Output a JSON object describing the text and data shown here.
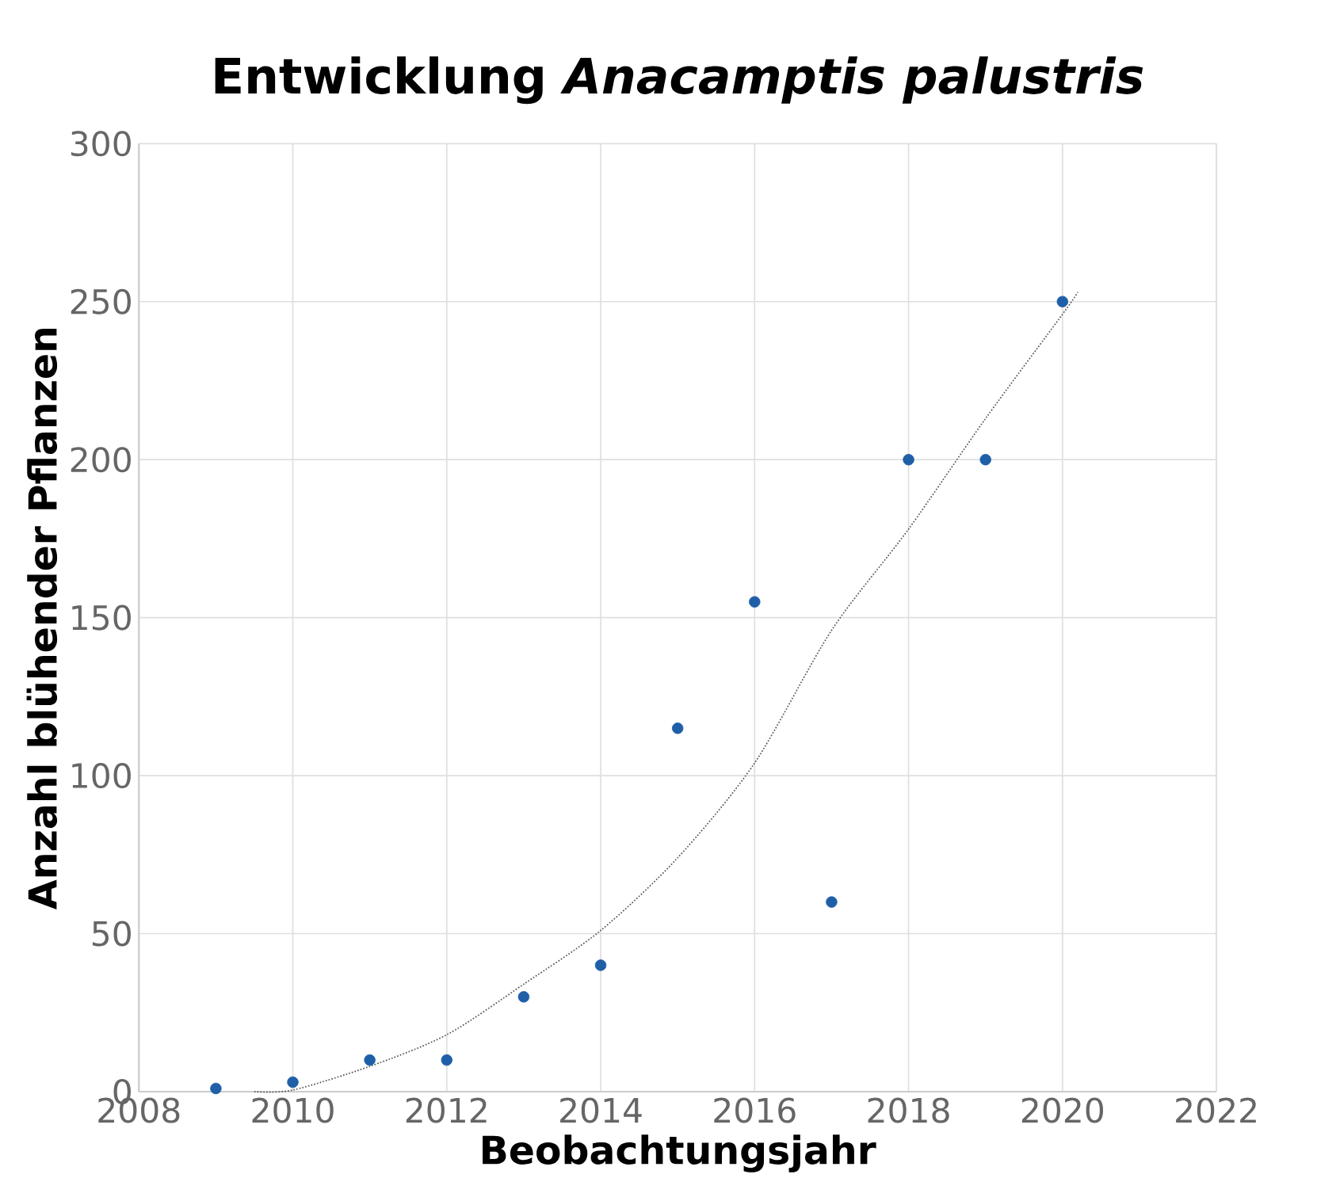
{
  "chart_data": {
    "type": "scatter",
    "title": "Entwicklung *Anacamptis palustris*",
    "xlabel": "Beobachtungsjahr",
    "ylabel": "Anzahl blühender Pflanzen",
    "xlim": [
      2008,
      2022
    ],
    "xticks": [
      2008,
      2010,
      2012,
      2014,
      2016,
      2018,
      2020,
      2022
    ],
    "ylim": [
      0,
      300
    ],
    "yticks": [
      0,
      50,
      100,
      150,
      200,
      250,
      300
    ],
    "grid": true,
    "series": [
      {
        "type": "scatter",
        "marker": "circle",
        "color": "#1f5fa8",
        "x": [
          2009,
          2010,
          2011,
          2012,
          2013,
          2014,
          2015,
          2016,
          2017,
          2018,
          2019,
          2020
        ],
        "values": [
          1,
          3,
          10,
          10,
          30,
          40,
          115,
          155,
          60,
          200,
          200,
          250
        ]
      },
      {
        "type": "line",
        "color": "#555555",
        "line_style": "dotted",
        "marker": "none",
        "x": [
          2009.5,
          2010,
          2011,
          2012,
          2013,
          2014,
          2015,
          2016,
          2017,
          2018,
          2019,
          2020,
          2020.2
        ],
        "values": [
          0,
          0.5,
          8,
          18,
          34,
          51,
          74,
          104,
          146,
          178,
          213,
          246,
          253
        ]
      }
    ]
  }
}
